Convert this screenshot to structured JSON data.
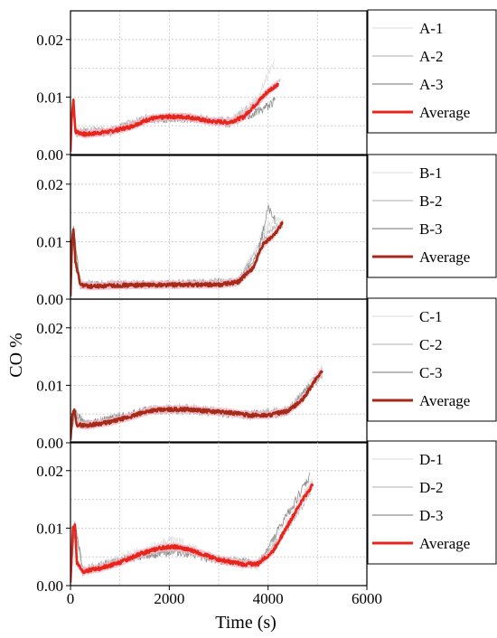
{
  "chart_data": {
    "type": "line",
    "xlabel": "Time (s)",
    "ylabel": "CO %",
    "xlim": [
      0,
      6000
    ],
    "xticks": [
      0,
      2000,
      4000,
      6000
    ],
    "ylim": [
      0,
      0.025
    ],
    "yticks": [
      0.0,
      0.01,
      0.02
    ],
    "ytick_labels": [
      "0.00",
      "0.01",
      "0.02"
    ],
    "grid": true,
    "legend_position": "right",
    "colors": {
      "replicate_1": "#e0e0e0",
      "replicate_2": "#bdbdbd",
      "replicate_3": "#8f8f8f",
      "average_dark": "#a52a18",
      "average_bright": "#e8251b",
      "band": "#f6b7c6"
    },
    "panels": [
      {
        "id": "A",
        "legend": [
          "A-1",
          "A-2",
          "A-3",
          "Average"
        ],
        "average_color": "average_bright",
        "average": [
          [
            0,
            0.0005
          ],
          [
            20,
            0.006
          ],
          [
            60,
            0.0095
          ],
          [
            100,
            0.004
          ],
          [
            300,
            0.0035
          ],
          [
            800,
            0.004
          ],
          [
            1200,
            0.0048
          ],
          [
            1600,
            0.0062
          ],
          [
            2000,
            0.0066
          ],
          [
            2400,
            0.0065
          ],
          [
            2800,
            0.0058
          ],
          [
            3200,
            0.0056
          ],
          [
            3500,
            0.0065
          ],
          [
            3800,
            0.0092
          ],
          [
            4000,
            0.011
          ],
          [
            4200,
            0.0123
          ]
        ],
        "replicates": [
          [
            [
              0,
              0.0004
            ],
            [
              60,
              0.0088
            ],
            [
              100,
              0.0038
            ],
            [
              800,
              0.0038
            ],
            [
              1600,
              0.006
            ],
            [
              2400,
              0.0067
            ],
            [
              3200,
              0.0055
            ],
            [
              3800,
              0.01
            ],
            [
              4000,
              0.014
            ],
            [
              4150,
              0.0165
            ]
          ],
          [
            [
              0,
              0.0005
            ],
            [
              60,
              0.009
            ],
            [
              100,
              0.0042
            ],
            [
              800,
              0.0042
            ],
            [
              1600,
              0.0065
            ],
            [
              2400,
              0.0062
            ],
            [
              3200,
              0.0058
            ],
            [
              3800,
              0.009
            ],
            [
              4000,
              0.011
            ],
            [
              4250,
              0.0125
            ]
          ],
          [
            [
              0,
              0.0006
            ],
            [
              60,
              0.0092
            ],
            [
              100,
              0.0036
            ],
            [
              800,
              0.004
            ],
            [
              1600,
              0.0062
            ],
            [
              2400,
              0.0064
            ],
            [
              3200,
              0.0054
            ],
            [
              3800,
              0.0075
            ],
            [
              4000,
              0.0085
            ],
            [
              4150,
              0.0095
            ]
          ]
        ]
      },
      {
        "id": "B",
        "legend": [
          "B-1",
          "B-2",
          "B-3",
          "Average"
        ],
        "average_color": "average_dark",
        "average": [
          [
            0,
            0.0005
          ],
          [
            30,
            0.01
          ],
          [
            60,
            0.012
          ],
          [
            100,
            0.0065
          ],
          [
            200,
            0.0025
          ],
          [
            400,
            0.0022
          ],
          [
            1000,
            0.0024
          ],
          [
            2000,
            0.0025
          ],
          [
            3000,
            0.0025
          ],
          [
            3400,
            0.003
          ],
          [
            3700,
            0.0055
          ],
          [
            3900,
            0.0095
          ],
          [
            4100,
            0.011
          ],
          [
            4300,
            0.0133
          ]
        ],
        "replicates": [
          [
            [
              0,
              0.0004
            ],
            [
              60,
              0.0115
            ],
            [
              200,
              0.0024
            ],
            [
              2000,
              0.0024
            ],
            [
              3400,
              0.0029
            ],
            [
              3900,
              0.0115
            ],
            [
              4100,
              0.0135
            ],
            [
              4300,
              0.0138
            ]
          ],
          [
            [
              0,
              0.0005
            ],
            [
              60,
              0.012
            ],
            [
              200,
              0.0026
            ],
            [
              2000,
              0.0026
            ],
            [
              3400,
              0.0031
            ],
            [
              3900,
              0.0105
            ],
            [
              4100,
              0.0125
            ],
            [
              4300,
              0.013
            ]
          ],
          [
            [
              0,
              0.0006
            ],
            [
              60,
              0.0122
            ],
            [
              200,
              0.0025
            ],
            [
              2000,
              0.0025
            ],
            [
              3400,
              0.0029
            ],
            [
              3800,
              0.008
            ],
            [
              4000,
              0.016
            ],
            [
              4150,
              0.0135
            ]
          ]
        ]
      },
      {
        "id": "C",
        "legend": [
          "C-1",
          "C-2",
          "C-3",
          "Average"
        ],
        "average_color": "average_dark",
        "average": [
          [
            0,
            0.0005
          ],
          [
            40,
            0.005
          ],
          [
            80,
            0.0055
          ],
          [
            120,
            0.0032
          ],
          [
            300,
            0.003
          ],
          [
            800,
            0.0036
          ],
          [
            1200,
            0.0045
          ],
          [
            1600,
            0.0056
          ],
          [
            2000,
            0.0058
          ],
          [
            2400,
            0.0058
          ],
          [
            2800,
            0.0055
          ],
          [
            3200,
            0.0053
          ],
          [
            3600,
            0.0048
          ],
          [
            4000,
            0.0048
          ],
          [
            4400,
            0.0055
          ],
          [
            4700,
            0.0075
          ],
          [
            5000,
            0.0115
          ],
          [
            5100,
            0.0125
          ]
        ],
        "replicates": [
          [
            [
              0,
              0.0004
            ],
            [
              80,
              0.0052
            ],
            [
              300,
              0.0028
            ],
            [
              1600,
              0.0055
            ],
            [
              2400,
              0.0058
            ],
            [
              3600,
              0.0046
            ],
            [
              4400,
              0.0055
            ],
            [
              5000,
              0.012
            ],
            [
              5100,
              0.013
            ]
          ],
          [
            [
              0,
              0.0005
            ],
            [
              80,
              0.0057
            ],
            [
              300,
              0.0032
            ],
            [
              1600,
              0.0058
            ],
            [
              2400,
              0.006
            ],
            [
              3600,
              0.005
            ],
            [
              4400,
              0.0058
            ],
            [
              5000,
              0.011
            ],
            [
              5100,
              0.012
            ]
          ],
          [
            [
              0,
              0.0006
            ],
            [
              80,
              0.0055
            ],
            [
              300,
              0.0031
            ],
            [
              1600,
              0.0056
            ],
            [
              2400,
              0.0057
            ],
            [
              3600,
              0.0048
            ],
            [
              4400,
              0.0052
            ],
            [
              5000,
              0.0115
            ],
            [
              5100,
              0.0125
            ]
          ]
        ]
      },
      {
        "id": "D",
        "legend": [
          "D-1",
          "D-2",
          "D-3",
          "Average"
        ],
        "average_color": "average_bright",
        "average": [
          [
            0,
            0.0005
          ],
          [
            50,
            0.01
          ],
          [
            90,
            0.0105
          ],
          [
            130,
            0.004
          ],
          [
            250,
            0.0025
          ],
          [
            600,
            0.003
          ],
          [
            1000,
            0.004
          ],
          [
            1400,
            0.0055
          ],
          [
            1800,
            0.0065
          ],
          [
            2100,
            0.0068
          ],
          [
            2500,
            0.006
          ],
          [
            3000,
            0.0045
          ],
          [
            3500,
            0.0037
          ],
          [
            3800,
            0.0038
          ],
          [
            4100,
            0.006
          ],
          [
            4400,
            0.0105
          ],
          [
            4700,
            0.015
          ],
          [
            4900,
            0.0175
          ]
        ],
        "replicates": [
          [
            [
              0,
              0.0004
            ],
            [
              90,
              0.01
            ],
            [
              250,
              0.0023
            ],
            [
              1400,
              0.006
            ],
            [
              2100,
              0.008
            ],
            [
              3000,
              0.0045
            ],
            [
              3800,
              0.0035
            ],
            [
              4400,
              0.0115
            ],
            [
              4900,
              0.0185
            ]
          ],
          [
            [
              0,
              0.0005
            ],
            [
              90,
              0.0105
            ],
            [
              250,
              0.0027
            ],
            [
              1400,
              0.0053
            ],
            [
              2100,
              0.0065
            ],
            [
              3000,
              0.0046
            ],
            [
              3800,
              0.0039
            ],
            [
              4400,
              0.01
            ],
            [
              4900,
              0.017
            ]
          ],
          [
            [
              0,
              0.0006
            ],
            [
              90,
              0.011
            ],
            [
              250,
              0.0025
            ],
            [
              1400,
              0.0052
            ],
            [
              2100,
              0.006
            ],
            [
              3000,
              0.0044
            ],
            [
              3800,
              0.0036
            ],
            [
              4300,
              0.011
            ],
            [
              4850,
              0.019
            ]
          ]
        ]
      }
    ]
  }
}
